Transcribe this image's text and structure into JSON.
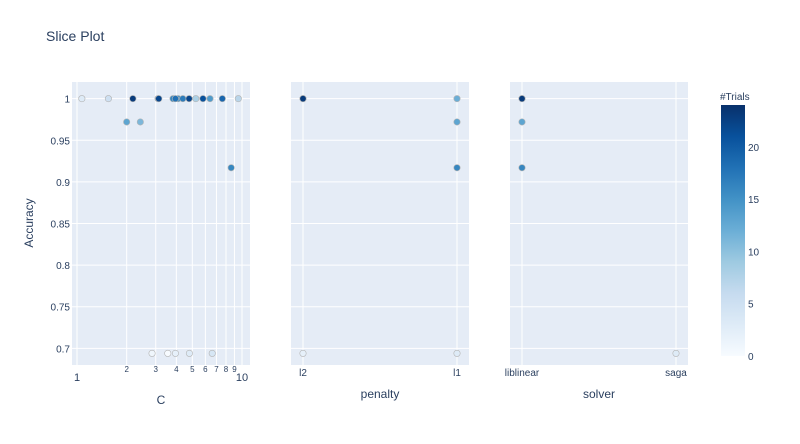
{
  "chart_data": {
    "type": "scatter",
    "title": "Slice Plot",
    "ylabel": "Accuracy",
    "ylim": [
      0.68,
      1.02
    ],
    "y_ticks": [
      0.7,
      0.75,
      0.8,
      0.85,
      0.9,
      0.95,
      1
    ],
    "y_tick_labels": [
      "0.7",
      "0.75",
      "0.8",
      "0.85",
      "0.9",
      "0.95",
      "1"
    ],
    "colorbar": {
      "title": "#Trials",
      "range": [
        0,
        24
      ],
      "ticks": [
        0,
        5,
        10,
        15,
        20
      ],
      "tick_labels": [
        "0",
        "5",
        "10",
        "15",
        "20"
      ],
      "colorscale": [
        "#f7fbff",
        "#deebf7",
        "#c6dbef",
        "#9ecae1",
        "#6baed6",
        "#4292c6",
        "#2171b5",
        "#08519c",
        "#08306b"
      ]
    },
    "subplots": [
      {
        "param": "C",
        "xlabel": "C",
        "xscale": "log",
        "xlim": [
          1,
          10
        ],
        "x_ticks": [
          1,
          2,
          3,
          4,
          5,
          6,
          7,
          8,
          9,
          10
        ],
        "x_tick_labels": [
          "1",
          "2",
          "3",
          "4",
          "5",
          "6",
          "7",
          "8",
          "9",
          "10"
        ],
        "points": [
          {
            "x": 1.07,
            "y": 1,
            "trial": 3
          },
          {
            "x": 1.55,
            "y": 1,
            "trial": 5
          },
          {
            "x": 2.0,
            "y": 0.972,
            "trial": 13
          },
          {
            "x": 2.42,
            "y": 0.972,
            "trial": 11
          },
          {
            "x": 2.18,
            "y": 1,
            "trial": 23
          },
          {
            "x": 2.85,
            "y": 0.694,
            "trial": 1
          },
          {
            "x": 3.1,
            "y": 1,
            "trial": 20
          },
          {
            "x": 3.13,
            "y": 1,
            "trial": 22
          },
          {
            "x": 3.55,
            "y": 0.694,
            "trial": 0
          },
          {
            "x": 3.82,
            "y": 1,
            "trial": 16
          },
          {
            "x": 3.95,
            "y": 0.694,
            "trial": 2
          },
          {
            "x": 3.95,
            "y": 1,
            "trial": 18
          },
          {
            "x": 4.1,
            "y": 1,
            "trial": 15
          },
          {
            "x": 4.38,
            "y": 1,
            "trial": 17
          },
          {
            "x": 4.78,
            "y": 1,
            "trial": 22
          },
          {
            "x": 4.8,
            "y": 0.694,
            "trial": 3
          },
          {
            "x": 5.25,
            "y": 1,
            "trial": 8
          },
          {
            "x": 5.8,
            "y": 1,
            "trial": 21
          },
          {
            "x": 6.4,
            "y": 1,
            "trial": 14
          },
          {
            "x": 6.6,
            "y": 0.694,
            "trial": 4
          },
          {
            "x": 7.6,
            "y": 1,
            "trial": 19
          },
          {
            "x": 8.6,
            "y": 0.917,
            "trial": 16
          },
          {
            "x": 9.5,
            "y": 1,
            "trial": 7
          }
        ]
      },
      {
        "param": "penalty",
        "xlabel": "penalty",
        "xscale": "category",
        "categories": [
          "l2",
          "l1"
        ],
        "points": [
          {
            "x": "l2",
            "y": 1,
            "trial": 23
          },
          {
            "x": "l2",
            "y": 1,
            "trial": 21
          },
          {
            "x": "l2",
            "y": 0.694,
            "trial": 2
          },
          {
            "x": "l1",
            "y": 1,
            "trial": 12
          },
          {
            "x": "l1",
            "y": 0.972,
            "trial": 13
          },
          {
            "x": "l1",
            "y": 0.917,
            "trial": 16
          },
          {
            "x": "l1",
            "y": 0.694,
            "trial": 3
          }
        ]
      },
      {
        "param": "solver",
        "xlabel": "solver",
        "xscale": "category",
        "categories": [
          "liblinear",
          "saga"
        ],
        "points": [
          {
            "x": "liblinear",
            "y": 1,
            "trial": 23
          },
          {
            "x": "liblinear",
            "y": 1,
            "trial": 21
          },
          {
            "x": "liblinear",
            "y": 0.972,
            "trial": 13
          },
          {
            "x": "liblinear",
            "y": 0.917,
            "trial": 16
          },
          {
            "x": "saga",
            "y": 0.694,
            "trial": 3
          }
        ]
      }
    ]
  }
}
